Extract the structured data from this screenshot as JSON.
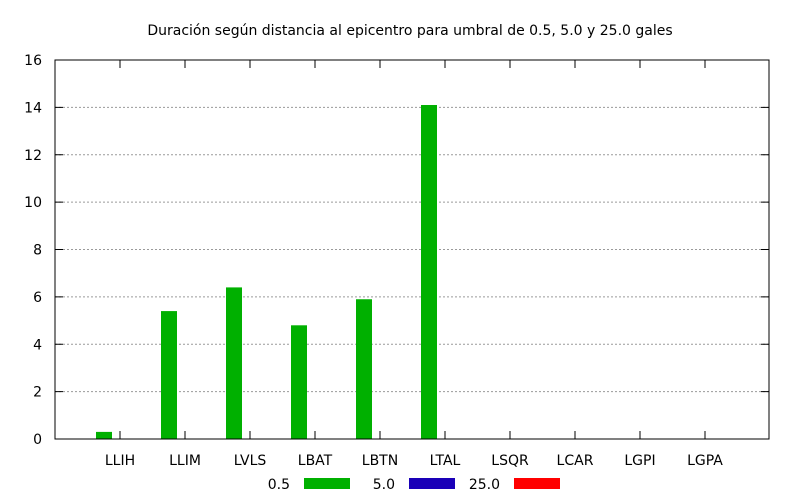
{
  "chart_data": {
    "type": "bar",
    "title": "Duración según distancia al epicentro para umbral de 0.5, 5.0 y 25.0 gales",
    "xlabel": "",
    "ylabel": "",
    "categories": [
      "LLIH",
      "LLIM",
      "LVLS",
      "LBAT",
      "LBTN",
      "LTAL",
      "LSQR",
      "LCAR",
      "LGPI",
      "LGPA"
    ],
    "series": [
      {
        "name": "0.5",
        "color": "#00b000",
        "values": [
          0.3,
          5.4,
          6.4,
          4.8,
          5.9,
          14.1,
          0,
          0,
          0,
          0
        ]
      },
      {
        "name": "5.0",
        "color": "#1a00b8",
        "values": [
          0,
          0,
          0,
          0,
          0,
          0,
          0,
          0,
          0,
          0
        ]
      },
      {
        "name": "25.0",
        "color": "#ff0000",
        "values": [
          0,
          0,
          0,
          0,
          0,
          0,
          0,
          0,
          0,
          0
        ]
      }
    ],
    "ylim": [
      0,
      16
    ],
    "yticks": [
      0,
      2,
      4,
      6,
      8,
      10,
      12,
      14,
      16
    ],
    "grid": true,
    "legend_position": "bottom-center"
  }
}
